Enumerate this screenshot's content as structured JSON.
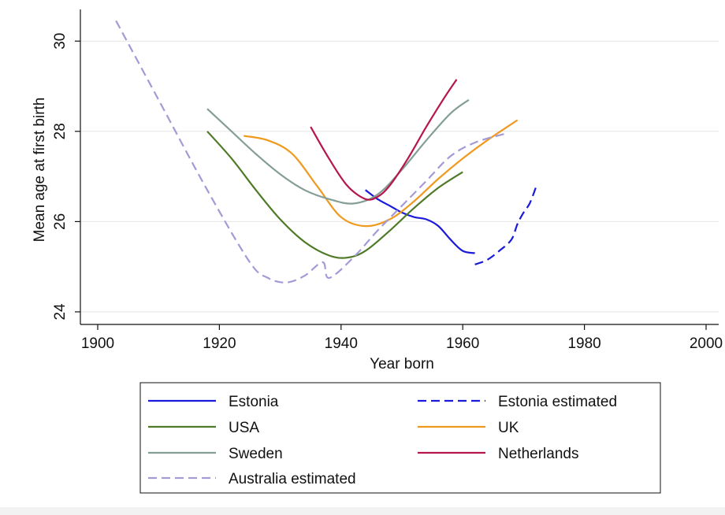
{
  "chart_data": {
    "type": "line",
    "title": "",
    "xlabel": "Year born",
    "ylabel": "Mean age at first birth",
    "xlim": [
      1900,
      2000
    ],
    "ylim": [
      24,
      30
    ],
    "x_ticks": [
      1900,
      1920,
      1940,
      1960,
      1980,
      2000
    ],
    "x_tick_labels": [
      "1900",
      "1920",
      "1940",
      "1960",
      "1980",
      "2000"
    ],
    "y_ticks": [
      24,
      26,
      28,
      30
    ],
    "y_tick_labels": [
      "24",
      "26",
      "28",
      "30"
    ],
    "grid": "horizontal",
    "legend_position": "bottom",
    "series": [
      {
        "name": "Estonia",
        "color": "#1a1adb",
        "dash": "solid",
        "x": [
          1944,
          1946,
          1948,
          1950,
          1952,
          1954,
          1956,
          1958,
          1960,
          1962
        ],
        "y": [
          26.7,
          26.5,
          26.35,
          26.2,
          26.1,
          26.05,
          25.9,
          25.6,
          25.35,
          25.3
        ]
      },
      {
        "name": "Estonia estimated",
        "color": "#1a1adb",
        "dash": "dashed",
        "x": [
          1962,
          1964,
          1966,
          1968,
          1969,
          1970,
          1971,
          1972
        ],
        "y": [
          25.05,
          25.15,
          25.35,
          25.6,
          25.95,
          26.2,
          26.4,
          26.75
        ]
      },
      {
        "name": "USA",
        "color": "#4f7a28",
        "dash": "solid",
        "x": [
          1918,
          1922,
          1926,
          1930,
          1934,
          1938,
          1941,
          1944,
          1948,
          1952,
          1956,
          1960
        ],
        "y": [
          28.0,
          27.4,
          26.7,
          26.05,
          25.55,
          25.25,
          25.2,
          25.35,
          25.8,
          26.3,
          26.75,
          27.1
        ]
      },
      {
        "name": "UK",
        "color": "#ef9a1f",
        "dash": "solid",
        "x": [
          1924,
          1928,
          1932,
          1936,
          1940,
          1944,
          1948,
          1952,
          1956,
          1960,
          1964,
          1969
        ],
        "y": [
          27.9,
          27.8,
          27.5,
          26.8,
          26.1,
          25.9,
          26.05,
          26.45,
          26.95,
          27.4,
          27.8,
          28.25
        ]
      },
      {
        "name": "Sweden",
        "color": "#849e96",
        "dash": "solid",
        "x": [
          1918,
          1922,
          1926,
          1930,
          1934,
          1938,
          1942,
          1946,
          1950,
          1954,
          1958,
          1961
        ],
        "y": [
          28.5,
          28.0,
          27.5,
          27.05,
          26.7,
          26.5,
          26.4,
          26.6,
          27.15,
          27.8,
          28.4,
          28.7
        ]
      },
      {
        "name": "Netherlands",
        "color": "#b5174a",
        "dash": "solid",
        "x": [
          1935,
          1938,
          1941,
          1944,
          1946,
          1948,
          1951,
          1954,
          1957,
          1959
        ],
        "y": [
          28.1,
          27.4,
          26.8,
          26.5,
          26.55,
          26.8,
          27.4,
          28.1,
          28.75,
          29.15
        ]
      },
      {
        "name": "Australia estimated",
        "color": "#a49ad6",
        "dash": "dashed",
        "x": [
          1903,
          1910,
          1918,
          1925,
          1928,
          1931,
          1934,
          1937,
          1938,
          1942,
          1946,
          1950,
          1954,
          1958,
          1962,
          1967
        ],
        "y": [
          30.45,
          28.7,
          26.7,
          25.1,
          24.75,
          24.65,
          24.8,
          25.1,
          24.75,
          25.2,
          25.8,
          26.35,
          26.9,
          27.45,
          27.75,
          27.95
        ]
      }
    ],
    "legend": {
      "items": [
        {
          "label": "Estonia",
          "color": "#1a1adb",
          "dash": "solid"
        },
        {
          "label": "Estonia estimated",
          "color": "#1a1adb",
          "dash": "dashed"
        },
        {
          "label": "USA",
          "color": "#4f7a28",
          "dash": "solid"
        },
        {
          "label": "UK",
          "color": "#ef9a1f",
          "dash": "solid"
        },
        {
          "label": "Sweden",
          "color": "#849e96",
          "dash": "solid"
        },
        {
          "label": "Netherlands",
          "color": "#b5174a",
          "dash": "solid"
        },
        {
          "label": "Australia estimated",
          "color": "#a49ad6",
          "dash": "dashed"
        }
      ]
    }
  }
}
